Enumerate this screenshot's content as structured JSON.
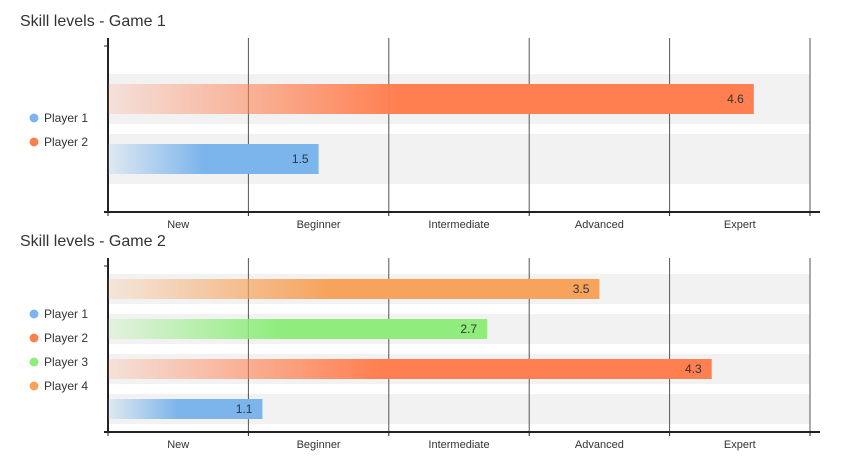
{
  "chart_data": [
    {
      "type": "bar",
      "orientation": "horizontal",
      "title": "Skill levels - Game 1",
      "categories": [
        "New",
        "Beginner",
        "Intermediate",
        "Advanced",
        "Expert"
      ],
      "xlim": [
        0,
        5
      ],
      "series": [
        {
          "name": "Player 1",
          "color": "#7cb5ec",
          "value": 1.5
        },
        {
          "name": "Player 2",
          "color": "#ff7f50",
          "value": 4.6
        }
      ],
      "bar_order_top_to_bottom": [
        "Player 2",
        "Player 1"
      ],
      "legend_position": "left"
    },
    {
      "type": "bar",
      "orientation": "horizontal",
      "title": "Skill levels - Game 2",
      "categories": [
        "New",
        "Beginner",
        "Intermediate",
        "Advanced",
        "Expert"
      ],
      "xlim": [
        0,
        5
      ],
      "series": [
        {
          "name": "Player 1",
          "color": "#7cb5ec",
          "value": 1.1
        },
        {
          "name": "Player 2",
          "color": "#ff7f50",
          "value": 4.3
        },
        {
          "name": "Player 3",
          "color": "#90ed7d",
          "value": 2.7
        },
        {
          "name": "Player 4",
          "color": "#f7a35c",
          "value": 3.5
        }
      ],
      "bar_order_top_to_bottom": [
        "Player 4",
        "Player 3",
        "Player 2",
        "Player 1"
      ],
      "legend_position": "left"
    }
  ]
}
